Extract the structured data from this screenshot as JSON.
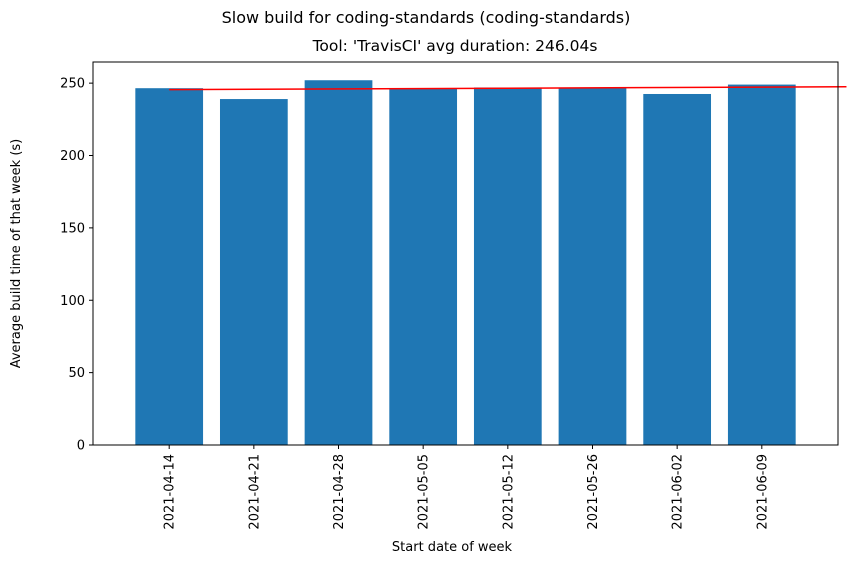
{
  "chart_data": {
    "type": "bar",
    "suptitle": "Slow build for coding-standards (coding-standards)",
    "title": "Tool: 'TravisCI' avg duration: 246.04s",
    "xlabel": "Start date of week",
    "ylabel": "Average build time of that week (s)",
    "categories": [
      "2021-04-14",
      "2021-04-21",
      "2021-04-28",
      "2021-05-05",
      "2021-05-12",
      "2021-05-26",
      "2021-06-02",
      "2021-06-09"
    ],
    "values": [
      246.5,
      239.0,
      252.0,
      246.0,
      247.0,
      247.0,
      242.5,
      249.0
    ],
    "bar_color": "#1f77b4",
    "trend_line": {
      "color": "#ff0000",
      "start": 245.5,
      "end": 247.5
    },
    "yticks": [
      0,
      50,
      100,
      150,
      200,
      250
    ],
    "ylim": [
      0,
      264.6
    ],
    "grid": false,
    "legend": "none"
  }
}
